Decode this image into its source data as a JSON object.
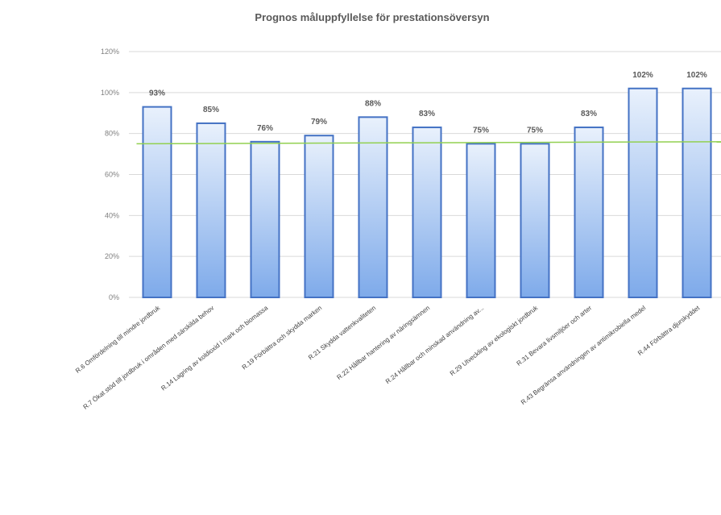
{
  "chart_data": {
    "type": "bar",
    "title": "Prognos måluppfyllelse för prestationsöversyn",
    "xlabel": "",
    "ylabel": "",
    "ylim": [
      0,
      120
    ],
    "yticks": [
      "0%",
      "20%",
      "40%",
      "60%",
      "80%",
      "100%",
      "120%"
    ],
    "grid": true,
    "legend": "none",
    "categories": [
      "R.6 Omfördelning till mindre jordbruk",
      "R.7 Ökat stöd till jordbruk i områden med särskilda behov",
      "R.14 Lagring av koldioxid i mark och biomassa",
      "R.19 Förbättra och skydda marken",
      "R.21 Skydda vattenkvaliteten",
      "R.22 Hållbar hantering av näringsämnen",
      "R.24 Hållbar och minskad användning av...",
      "R.29 Utveckling av ekologiskt jordbruk",
      "R.31 Bevara livsmiljöer och arter",
      "R.43 Begränsa användningen av antimikrobiella medel",
      "R.44 Förbättra djurskyddet"
    ],
    "values": [
      93,
      85,
      76,
      79,
      88,
      83,
      75,
      75,
      83,
      102,
      102
    ],
    "data_labels": [
      "93%",
      "85%",
      "76%",
      "79%",
      "88%",
      "83%",
      "75%",
      "75%",
      "83%",
      "102%",
      "102%"
    ],
    "target_line": [
      75,
      76
    ],
    "colors": {
      "bar_top": "#e9f1fc",
      "bar_bottom": "#7eaaea",
      "bar_stroke": "#4472c4",
      "target": "#92d050"
    }
  }
}
